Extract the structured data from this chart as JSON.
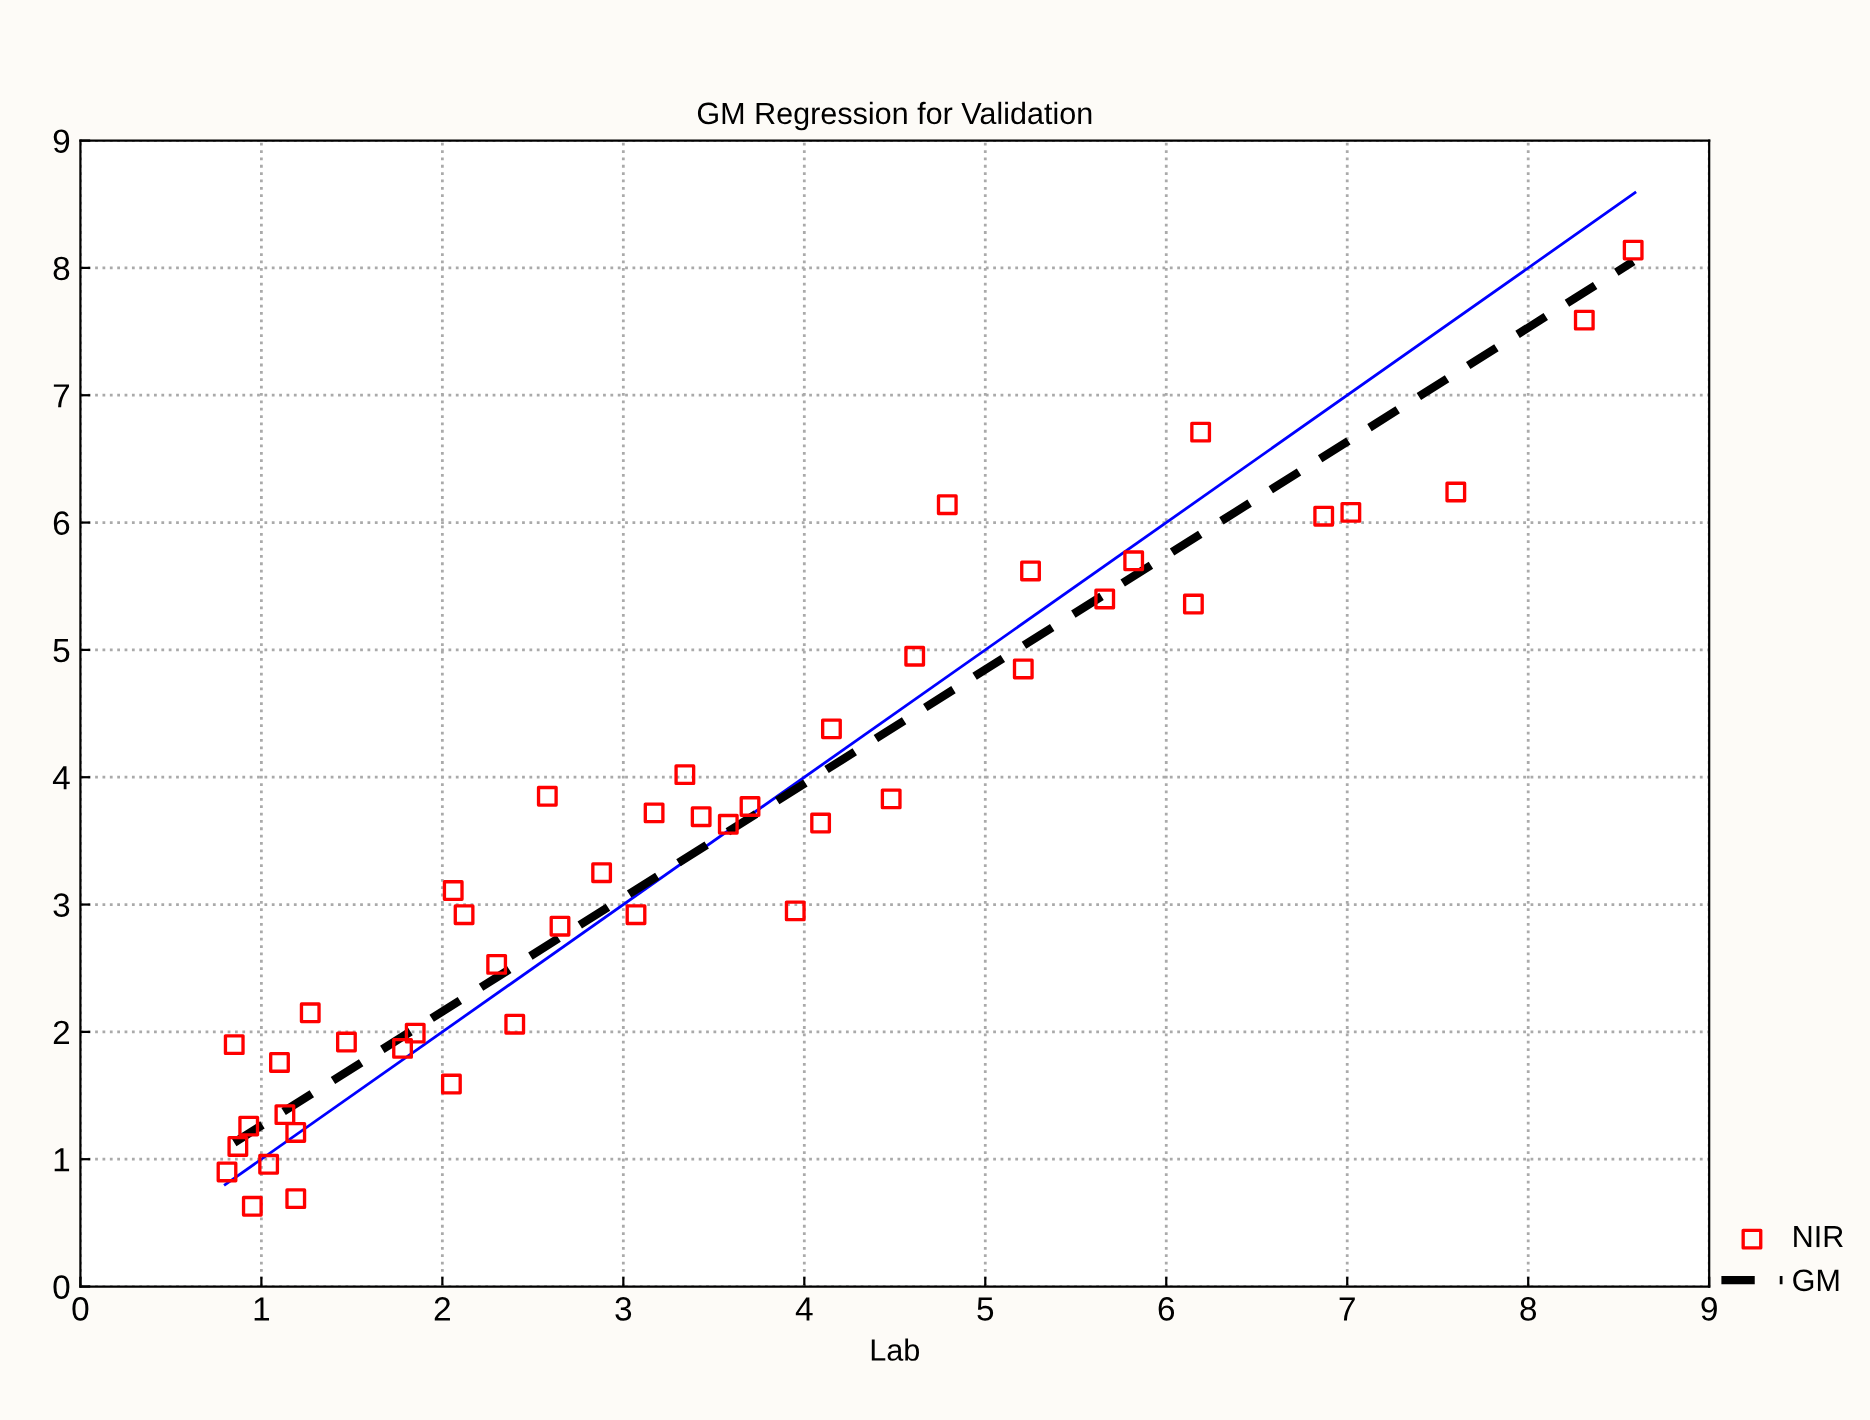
{
  "chart_data": {
    "type": "scatter",
    "title": "GM Regression for Validation",
    "xlabel": "Lab",
    "xlim": [
      0,
      9
    ],
    "ylim": [
      0,
      9
    ],
    "xticks": [
      0,
      1,
      2,
      3,
      4,
      5,
      6,
      7,
      8,
      9
    ],
    "yticks": [
      0,
      1,
      2,
      3,
      4,
      5,
      6,
      7,
      8,
      9
    ],
    "grid": true,
    "legend": "bottom right",
    "series": [
      {
        "name": "NIR",
        "marker": "square",
        "color": "#ff0000",
        "x": [
          0.81,
          0.85,
          0.87,
          0.93,
          0.95,
          1.04,
          1.1,
          1.13,
          1.19,
          1.19,
          1.27,
          1.47,
          1.78,
          1.85,
          2.05,
          2.06,
          2.12,
          2.3,
          2.4,
          2.58,
          2.65,
          2.88,
          3.07,
          3.17,
          3.34,
          3.43,
          3.58,
          3.7,
          3.95,
          4.09,
          4.15,
          4.48,
          4.61,
          4.79,
          5.21,
          5.25,
          5.66,
          5.82,
          6.15,
          6.19,
          6.87,
          7.02,
          7.6,
          8.31,
          8.58
        ],
        "values": [
          0.9,
          1.9,
          1.1,
          1.26,
          0.63,
          0.96,
          1.76,
          1.35,
          1.21,
          0.69,
          2.15,
          1.92,
          1.87,
          1.99,
          1.59,
          3.11,
          2.92,
          2.53,
          2.06,
          3.85,
          2.83,
          3.25,
          2.92,
          3.72,
          4.02,
          3.69,
          3.63,
          3.77,
          2.95,
          3.64,
          4.38,
          3.83,
          4.95,
          6.14,
          4.85,
          5.62,
          5.4,
          5.7,
          5.36,
          6.71,
          6.05,
          6.08,
          6.24,
          7.59,
          8.14
        ]
      },
      {
        "type": "line",
        "color": "#0000ff",
        "line_style": "solid",
        "x": [
          0.8,
          8.59
        ],
        "values": [
          0.8,
          8.59
        ]
      },
      {
        "name": "GM",
        "type": "line",
        "color": "#000000",
        "line_style": "dashed",
        "x": [
          0.85,
          8.58
        ],
        "values": [
          1.13,
          8.05
        ]
      }
    ]
  }
}
